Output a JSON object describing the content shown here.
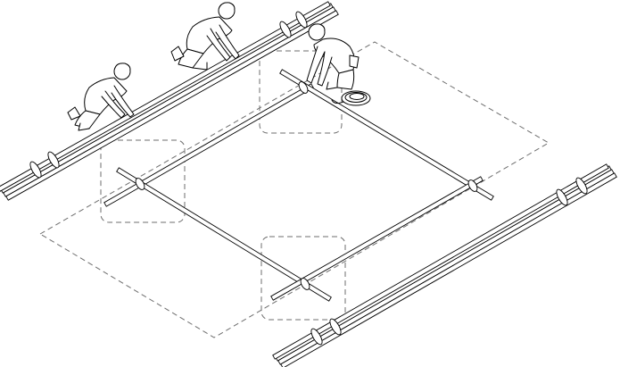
{
  "figure": {
    "kind": "line illustration",
    "colors": {
      "line": "#000000",
      "dashed": "#6e6e6e",
      "background": "#ffffff"
    },
    "elements": [
      "frame-square",
      "pole-bundle-back",
      "pole-bundle-right",
      "dashed-outline",
      "corner-highlight-left",
      "corner-highlight-top",
      "corner-highlight-bottom",
      "worker-left",
      "worker-middle",
      "worker-right",
      "rope-coil"
    ]
  }
}
